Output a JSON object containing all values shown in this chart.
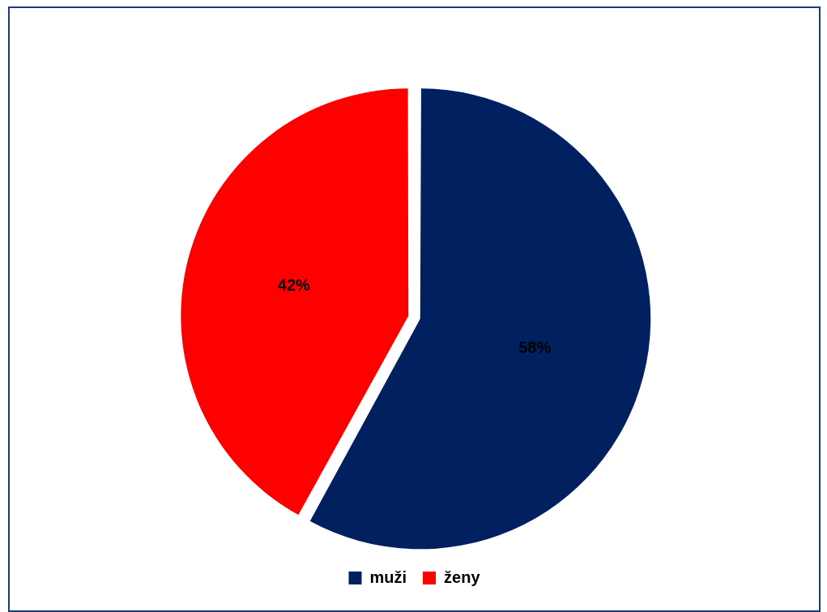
{
  "chart_data": {
    "type": "pie",
    "categories": [
      "muži",
      "ženy"
    ],
    "values": [
      58,
      42
    ],
    "colors": [
      "#002060",
      "#ff0000"
    ],
    "value_labels": [
      "58%",
      "42%"
    ],
    "legend": "bottom"
  }
}
